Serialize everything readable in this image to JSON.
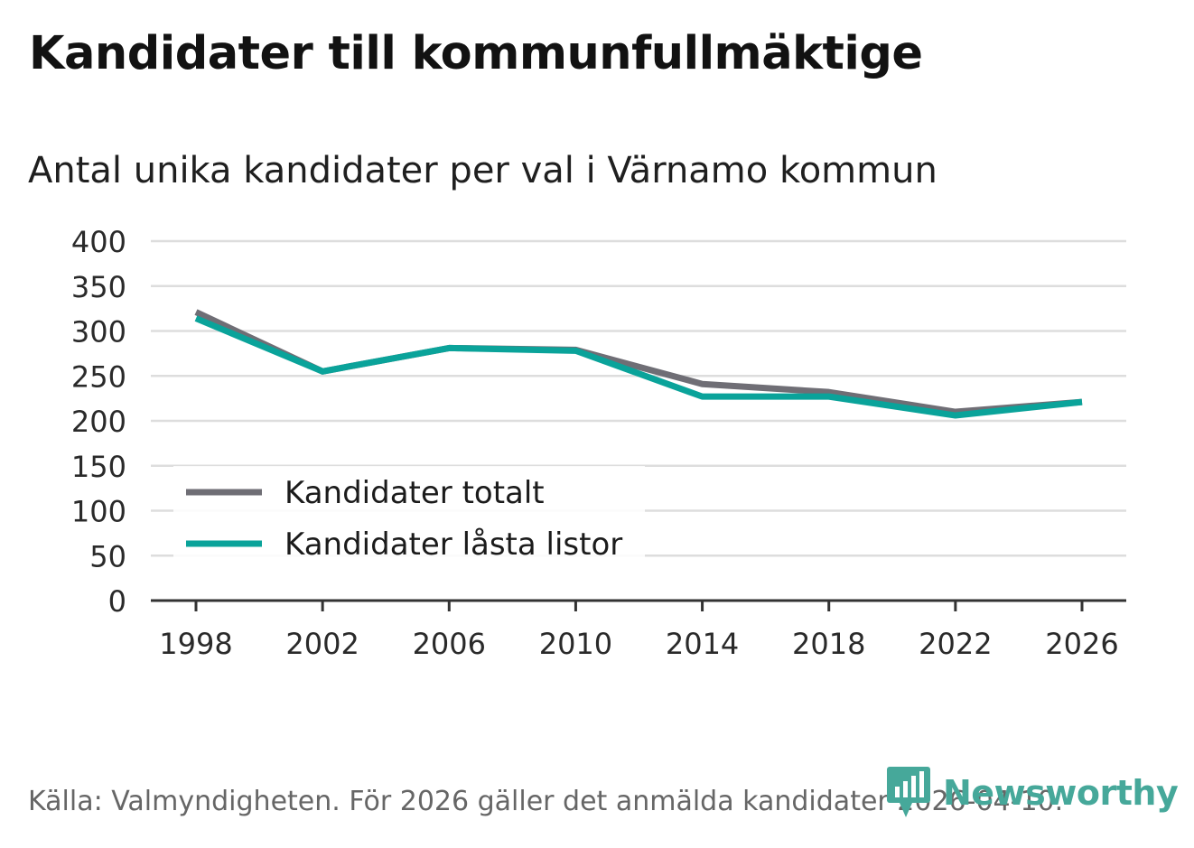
{
  "title": "Kandidater till kommunfullmäktige",
  "subtitle": "Antal unika kandidater per val i Värnamo kommun",
  "source": "Källa: Valmyndigheten. För 2026 gäller det anmälda kandidater 2026-04-10.",
  "brand": "Newsworthy",
  "colors": {
    "series1": "#6f6e75",
    "series2": "#0aa39a",
    "grid": "#dddddd",
    "axis": "#333333",
    "brand": "#46a89a"
  },
  "chart_data": {
    "type": "line",
    "title": "Kandidater till kommunfullmäktige",
    "subtitle": "Antal unika kandidater per val i Värnamo kommun",
    "xlabel": "",
    "ylabel": "",
    "ylim": [
      0,
      400
    ],
    "yticks": [
      0,
      50,
      100,
      150,
      200,
      250,
      300,
      350,
      400
    ],
    "categories": [
      "1998",
      "2002",
      "2006",
      "2010",
      "2014",
      "2018",
      "2022",
      "2026"
    ],
    "grid": true,
    "legend_position": "bottom-left",
    "series": [
      {
        "name": "Kandidater totalt",
        "color": "#6f6e75",
        "values": [
          321,
          255,
          281,
          279,
          241,
          232,
          210,
          221
        ]
      },
      {
        "name": "Kandidater låsta listor",
        "color": "#0aa39a",
        "values": [
          314,
          255,
          281,
          278,
          227,
          227,
          206,
          221
        ]
      }
    ]
  }
}
